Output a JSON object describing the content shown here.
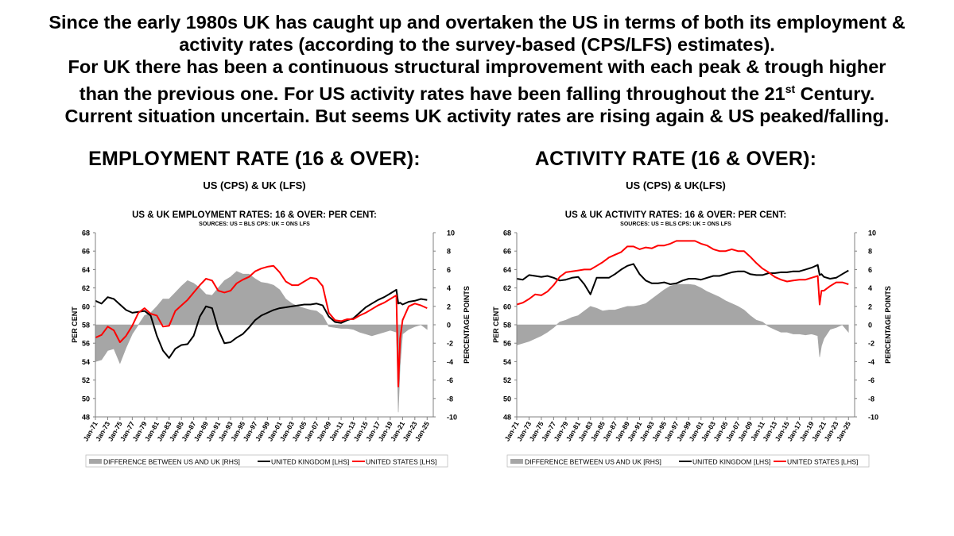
{
  "headline": {
    "line1": "Since the early 1980s UK has caught up and overtaken the US in terms of both its employment &",
    "line2": "activity rates (according to the survey-based (CPS/LFS) estimates).",
    "line3": "For UK there has been a continuous structural improvement with each peak & trough higher",
    "line4a": "than the previous one. For US activity rates have been falling throughout the 21",
    "line4sup": "st",
    "line4b": " Century.",
    "line5": "Current situation uncertain. But seems UK activity rates are rising again & US peaked/falling."
  },
  "colors": {
    "diff": "#a6a6a6",
    "uk": "#000000",
    "us": "#ff0000"
  },
  "panels": [
    {
      "heading": "EMPLOYMENT RATE (16 & OVER):",
      "subheading": "US (CPS) & UK (LFS)",
      "chart_data": {
        "type": "line",
        "title": "US & UK EMPLOYMENT RATES: 16 & OVER: PER CENT:",
        "subtitle": "SOURCES: US = BLS CPS: UK = ONS LFS",
        "ylabel": "PER CENT",
        "y2label": "PERCENTAGE POINTS",
        "ylim": [
          48,
          68
        ],
        "y2lim": [
          -10,
          10
        ],
        "yticks": [
          "48",
          "50",
          "52",
          "54",
          "56",
          "58",
          "60",
          "62",
          "64",
          "66",
          "68"
        ],
        "y2ticks": [
          "-10",
          "-8",
          "-6",
          "-4",
          "-2",
          "0",
          "2",
          "4",
          "6",
          "8",
          "10"
        ],
        "xlim": [
          1971,
          2026
        ],
        "xticks": [
          "Jan-71",
          "Jan-73",
          "Jan-75",
          "Jan-77",
          "Jan-79",
          "Jan-81",
          "Jan-83",
          "Jan-85",
          "Jan-87",
          "Jan-89",
          "Jan-91",
          "Jan-93",
          "Jan-95",
          "Jan-97",
          "Jan-99",
          "Jan-01",
          "Jan-03",
          "Jan-05",
          "Jan-07",
          "Jan-09",
          "Jan-11",
          "Jan-13",
          "Jan-15",
          "Jan-17",
          "Jan-19",
          "Jan-21",
          "Jan-23",
          "Jan-25"
        ],
        "grid": false,
        "legend_position": "bottom",
        "x": [
          1971,
          1972,
          1973,
          1974,
          1975,
          1976,
          1977,
          1978,
          1979,
          1980,
          1981,
          1982,
          1983,
          1984,
          1985,
          1986,
          1987,
          1988,
          1989,
          1990,
          1991,
          1992,
          1993,
          1994,
          1995,
          1996,
          1997,
          1998,
          1999,
          2000,
          2001,
          2002,
          2003,
          2004,
          2005,
          2006,
          2007,
          2008,
          2009,
          2010,
          2011,
          2012,
          2013,
          2014,
          2015,
          2016,
          2017,
          2018,
          2019,
          2020,
          2020.3,
          2020.6,
          2021,
          2022,
          2023,
          2024,
          2025
        ],
        "series": [
          {
            "name": "DIFFERENCE BETWEEN US AND UK [RHS]",
            "axis": "right",
            "style": "area",
            "values": [
              -4.0,
              -3.8,
              -2.8,
              -2.6,
              -4.2,
              -2.5,
              -1.0,
              0.0,
              1.0,
              1.3,
              2.0,
              2.8,
              2.8,
              3.5,
              4.2,
              4.8,
              4.5,
              4.0,
              3.3,
              3.2,
              4.0,
              4.8,
              5.2,
              5.8,
              5.5,
              5.5,
              5.0,
              4.6,
              4.5,
              4.3,
              3.8,
              2.8,
              2.3,
              2.0,
              1.8,
              1.6,
              1.5,
              1.0,
              -0.2,
              -0.3,
              -0.4,
              -0.4,
              -0.5,
              -0.8,
              -1.0,
              -1.2,
              -1.0,
              -0.8,
              -0.6,
              -0.8,
              -9.5,
              -4.5,
              -1.0,
              -0.5,
              -0.2,
              0.0,
              -0.5
            ]
          },
          {
            "name": "UNITED KINGDOM [LHS]",
            "axis": "left",
            "style": "line",
            "values": [
              60.6,
              60.3,
              61.0,
              60.8,
              60.2,
              59.6,
              59.3,
              59.4,
              59.5,
              59.0,
              56.8,
              55.2,
              54.4,
              55.4,
              55.8,
              55.9,
              56.8,
              58.9,
              60.0,
              59.8,
              57.5,
              56.0,
              56.1,
              56.6,
              57.0,
              57.7,
              58.5,
              59.0,
              59.3,
              59.6,
              59.8,
              59.9,
              60.0,
              60.1,
              60.2,
              60.2,
              60.3,
              60.1,
              58.9,
              58.3,
              58.2,
              58.5,
              58.7,
              59.3,
              59.9,
              60.3,
              60.7,
              61.0,
              61.4,
              61.8,
              60.3,
              60.4,
              60.2,
              60.5,
              60.6,
              60.8,
              60.7
            ]
          },
          {
            "name": "UNITED STATES [LHS]",
            "axis": "left",
            "style": "line",
            "values": [
              56.6,
              56.9,
              57.8,
              57.4,
              56.1,
              56.8,
              57.9,
              59.3,
              59.8,
              59.2,
              59.0,
              57.8,
              57.9,
              59.5,
              60.1,
              60.7,
              61.5,
              62.3,
              63.0,
              62.8,
              61.7,
              61.5,
              61.7,
              62.5,
              62.9,
              63.2,
              63.8,
              64.1,
              64.3,
              64.4,
              63.7,
              62.7,
              62.3,
              62.3,
              62.7,
              63.1,
              63.0,
              62.2,
              59.3,
              58.5,
              58.4,
              58.6,
              58.6,
              59.0,
              59.3,
              59.7,
              60.1,
              60.4,
              60.8,
              61.2,
              51.3,
              56.5,
              58.5,
              60.0,
              60.3,
              60.1,
              59.8
            ]
          }
        ]
      }
    },
    {
      "heading": "ACTIVITY RATE (16 & OVER):",
      "subheading": "US (CPS) & UK(LFS)",
      "chart_data": {
        "type": "line",
        "title": "US & UK ACTIVITY RATES: 16 & OVER: PER CENT:",
        "subtitle": "SOURCES: US = BLS CPS: UK = ONS LFS",
        "ylabel": "PER CENT",
        "y2label": "PERCENTAGE POINTS",
        "ylim": [
          48,
          68
        ],
        "y2lim": [
          -10,
          10
        ],
        "yticks": [
          "48",
          "50",
          "52",
          "54",
          "56",
          "58",
          "60",
          "62",
          "64",
          "66",
          "68"
        ],
        "y2ticks": [
          "-10",
          "-8",
          "-6",
          "-4",
          "-2",
          "0",
          "2",
          "4",
          "6",
          "8",
          "10"
        ],
        "xlim": [
          1971,
          2026
        ],
        "xticks": [
          "Jan-71",
          "Jan-73",
          "Jan-75",
          "Jan-77",
          "Jan-79",
          "Jan-81",
          "Jan-83",
          "Jan-85",
          "Jan-87",
          "Jan-89",
          "Jan-91",
          "Jan-93",
          "Jan-95",
          "Jan-97",
          "Jan-99",
          "Jan-01",
          "Jan-03",
          "Jan-05",
          "Jan-07",
          "Jan-09",
          "Jan-11",
          "Jan-13",
          "Jan-15",
          "Jan-17",
          "Jan-19",
          "Jan-21",
          "Jan-23",
          "Jan-25"
        ],
        "grid": false,
        "legend_position": "bottom",
        "x": [
          1971,
          1972,
          1973,
          1974,
          1975,
          1976,
          1977,
          1978,
          1979,
          1980,
          1981,
          1982,
          1983,
          1984,
          1985,
          1986,
          1987,
          1988,
          1989,
          1990,
          1991,
          1992,
          1993,
          1994,
          1995,
          1996,
          1997,
          1998,
          1999,
          2000,
          2001,
          2002,
          2003,
          2004,
          2005,
          2006,
          2007,
          2008,
          2009,
          2010,
          2011,
          2012,
          2013,
          2014,
          2015,
          2016,
          2017,
          2018,
          2019,
          2020,
          2020.3,
          2020.6,
          2021,
          2022,
          2023,
          2024,
          2025
        ],
        "series": [
          {
            "name": "DIFFERENCE BETWEEN US AND UK [RHS]",
            "axis": "right",
            "style": "area",
            "values": [
              -2.2,
              -2.0,
              -1.8,
              -1.5,
              -1.2,
              -0.8,
              -0.3,
              0.3,
              0.5,
              0.8,
              1.0,
              1.5,
              2.0,
              1.8,
              1.5,
              1.6,
              1.6,
              1.8,
              2.0,
              2.0,
              2.1,
              2.3,
              2.8,
              3.3,
              3.8,
              4.2,
              4.4,
              4.4,
              4.4,
              4.3,
              4.0,
              3.6,
              3.3,
              3.0,
              2.6,
              2.3,
              2.0,
              1.6,
              1.0,
              0.5,
              0.3,
              -0.2,
              -0.5,
              -0.8,
              -0.8,
              -1.0,
              -1.0,
              -1.1,
              -1.0,
              -1.2,
              -3.5,
              -2.3,
              -1.5,
              -0.5,
              -0.3,
              0.0,
              -0.8
            ]
          },
          {
            "name": "UNITED KINGDOM [LHS]",
            "axis": "left",
            "style": "line",
            "values": [
              63.0,
              62.9,
              63.4,
              63.3,
              63.2,
              63.3,
              63.1,
              62.8,
              62.9,
              63.1,
              63.2,
              62.4,
              61.3,
              63.1,
              63.1,
              63.1,
              63.5,
              64.0,
              64.4,
              64.6,
              63.5,
              62.8,
              62.5,
              62.5,
              62.6,
              62.4,
              62.5,
              62.8,
              63.0,
              63.0,
              62.9,
              63.1,
              63.3,
              63.3,
              63.5,
              63.7,
              63.8,
              63.8,
              63.5,
              63.4,
              63.4,
              63.6,
              63.6,
              63.7,
              63.7,
              63.8,
              63.8,
              64.0,
              64.2,
              64.5,
              63.4,
              63.5,
              63.2,
              63.0,
              63.1,
              63.5,
              63.9
            ]
          },
          {
            "name": "UNITED STATES [LHS]",
            "axis": "left",
            "style": "line",
            "values": [
              60.2,
              60.4,
              60.8,
              61.3,
              61.2,
              61.6,
              62.3,
              63.2,
              63.7,
              63.8,
              63.9,
              64.0,
              64.0,
              64.4,
              64.8,
              65.3,
              65.6,
              65.9,
              66.5,
              66.5,
              66.2,
              66.4,
              66.3,
              66.6,
              66.6,
              66.8,
              67.1,
              67.1,
              67.1,
              67.1,
              66.8,
              66.6,
              66.2,
              66.0,
              66.0,
              66.2,
              66.0,
              66.0,
              65.4,
              64.7,
              64.1,
              63.7,
              63.2,
              62.9,
              62.7,
              62.8,
              62.9,
              62.9,
              63.1,
              63.3,
              60.2,
              61.7,
              61.7,
              62.2,
              62.6,
              62.6,
              62.4
            ]
          }
        ]
      }
    }
  ]
}
